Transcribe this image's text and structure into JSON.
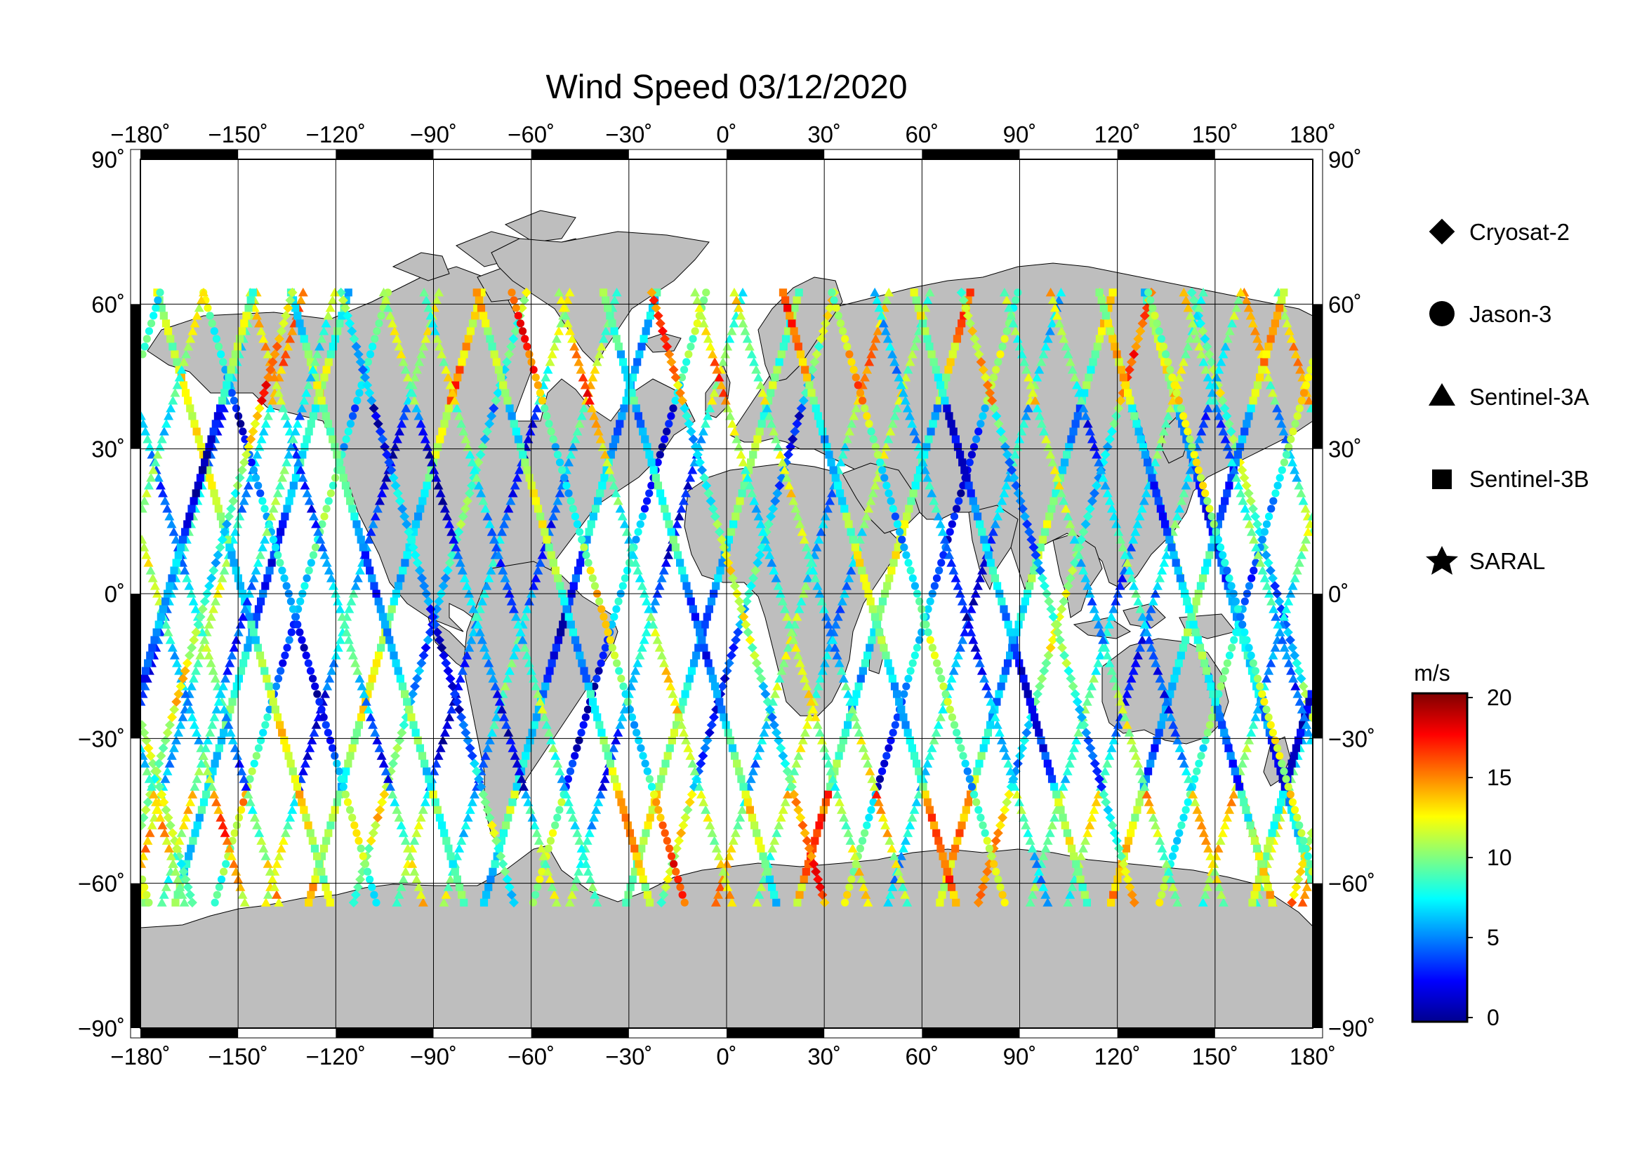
{
  "title": "Wind Speed 03/12/2020",
  "map": {
    "lon_range": [
      -180,
      180
    ],
    "lat_range": [
      -90,
      90
    ],
    "lon_ticks": [
      -180,
      -150,
      -120,
      -90,
      -60,
      -30,
      0,
      30,
      60,
      90,
      120,
      150,
      180
    ],
    "lat_ticks": [
      -90,
      -60,
      -30,
      0,
      30,
      60,
      90
    ],
    "lon_tick_labels": [
      "−180˚",
      "−150˚",
      "−120˚",
      "−90˚",
      "−60˚",
      "−30˚",
      "0˚",
      "30˚",
      "60˚",
      "90˚",
      "120˚",
      "150˚",
      "180˚"
    ],
    "lat_tick_labels": [
      "−90˚",
      "−60˚",
      "−30˚",
      "0˚",
      "30˚",
      "60˚",
      "90˚"
    ],
    "land_color": "#bebebe",
    "ocean_color": "#ffffff",
    "grid": true
  },
  "legend": {
    "placement": "right",
    "items": [
      {
        "label": "Cryosat-2",
        "icon": "diamond-icon"
      },
      {
        "label": "Jason-3",
        "icon": "circle-icon"
      },
      {
        "label": "Sentinel-3A",
        "icon": "triangle-icon"
      },
      {
        "label": "Sentinel-3B",
        "icon": "square-icon"
      },
      {
        "label": "SARAL",
        "icon": "star-icon"
      }
    ]
  },
  "colorbar": {
    "unit": "m/s",
    "min": 0,
    "max": 20,
    "ticks": [
      0,
      5,
      10,
      15,
      20
    ],
    "tick_labels": [
      "0",
      "5",
      "10",
      "15",
      "20"
    ],
    "colormap": "jet"
  }
}
